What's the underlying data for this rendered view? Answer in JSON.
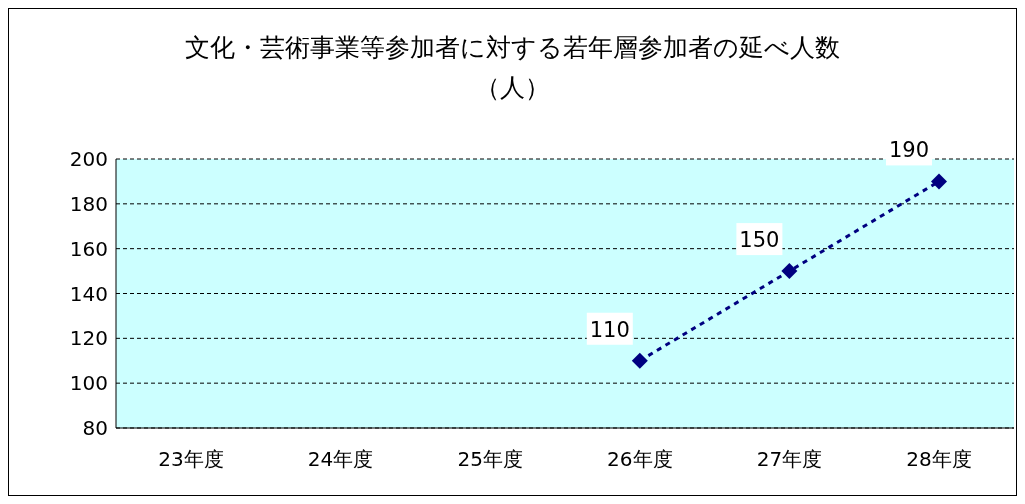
{
  "chart_data": {
    "type": "line",
    "title": "文化・芸術事業等参加者に対する若年層参加者の延べ人数",
    "subtitle": "（人）",
    "categories": [
      "23年度",
      "24年度",
      "25年度",
      "26年度",
      "27年度",
      "28年度"
    ],
    "series": [
      {
        "color": "#000080",
        "values": [
          null,
          null,
          null,
          110,
          150,
          190
        ]
      }
    ],
    "ylim": [
      80,
      200
    ],
    "yticks": [
      80,
      100,
      120,
      140,
      160,
      180,
      200
    ],
    "grid": "y",
    "legend": false,
    "marker": "diamond",
    "line_style": "dotted",
    "data_labels": true
  }
}
